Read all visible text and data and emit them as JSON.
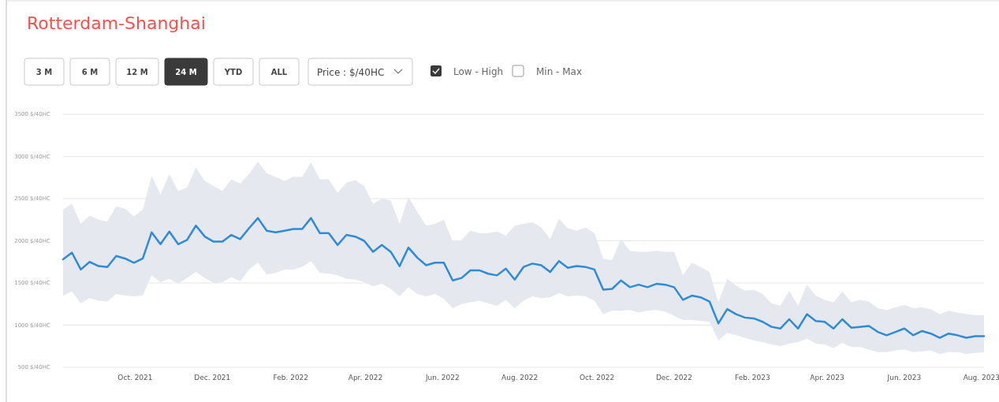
{
  "chart_data": {
    "type": "line",
    "title": "Rotterdam-Shanghai",
    "annotations": [
      "3 M",
      "6 M",
      "12 M",
      "24 M",
      "YTD",
      "ALL",
      "Price : $/40HC",
      "Low - High",
      "Min - Max"
    ],
    "x": [
      "2021-08-05",
      "2021-08-12",
      "2021-08-19",
      "2021-08-26",
      "2021-09-02",
      "2021-09-09",
      "2021-09-16",
      "2021-09-23",
      "2021-09-30",
      "2021-10-07",
      "2021-10-14",
      "2021-10-21",
      "2021-10-28",
      "2021-11-04",
      "2021-11-11",
      "2021-11-18",
      "2021-11-25",
      "2021-12-02",
      "2021-12-09",
      "2021-12-16",
      "2021-12-23",
      "2021-12-30",
      "2022-01-06",
      "2022-01-13",
      "2022-01-20",
      "2022-01-27",
      "2022-02-03",
      "2022-02-10",
      "2022-02-17",
      "2022-02-24",
      "2022-03-03",
      "2022-03-10",
      "2022-03-17",
      "2022-03-24",
      "2022-03-31",
      "2022-04-07",
      "2022-04-14",
      "2022-04-21",
      "2022-04-28",
      "2022-05-05",
      "2022-05-12",
      "2022-05-19",
      "2022-05-26",
      "2022-06-02",
      "2022-06-09",
      "2022-06-16",
      "2022-06-23",
      "2022-06-30",
      "2022-07-07",
      "2022-07-14",
      "2022-07-21",
      "2022-07-28",
      "2022-08-04",
      "2022-08-11",
      "2022-08-18",
      "2022-08-25",
      "2022-09-01",
      "2022-09-08",
      "2022-09-15",
      "2022-09-22",
      "2022-09-29",
      "2022-10-06",
      "2022-10-13",
      "2022-10-20",
      "2022-10-27",
      "2022-11-03",
      "2022-11-10",
      "2022-11-17",
      "2022-11-24",
      "2022-12-01",
      "2022-12-08",
      "2022-12-15",
      "2022-12-22",
      "2022-12-29",
      "2023-01-05",
      "2023-01-12",
      "2023-01-19",
      "2023-01-26",
      "2023-02-02",
      "2023-02-09",
      "2023-02-16",
      "2023-02-23",
      "2023-03-02",
      "2023-03-09",
      "2023-03-16",
      "2023-03-23",
      "2023-03-30",
      "2023-04-06",
      "2023-04-13",
      "2023-04-20",
      "2023-04-27",
      "2023-05-04",
      "2023-05-11",
      "2023-05-18",
      "2023-05-25",
      "2023-06-01",
      "2023-06-08",
      "2023-06-15",
      "2023-06-22",
      "2023-06-29",
      "2023-07-06",
      "2023-07-13",
      "2023-07-20",
      "2023-07-27",
      "2023-08-03"
    ],
    "series": [
      {
        "color": "#2f8ad8",
        "values": [
          1780,
          1860,
          1660,
          1750,
          1700,
          1690,
          1820,
          1790,
          1740,
          1790,
          2100,
          1960,
          2110,
          1960,
          2010,
          2180,
          2050,
          1990,
          1990,
          2070,
          2020,
          2150,
          2270,
          2120,
          2100,
          2120,
          2140,
          2140,
          2270,
          2090,
          2090,
          1950,
          2070,
          2050,
          2000,
          1870,
          1950,
          1870,
          1700,
          1920,
          1800,
          1710,
          1740,
          1740,
          1530,
          1560,
          1650,
          1650,
          1610,
          1590,
          1670,
          1540,
          1690,
          1730,
          1710,
          1630,
          1760,
          1680,
          1700,
          1690,
          1660,
          1420,
          1430,
          1530,
          1450,
          1480,
          1450,
          1490,
          1480,
          1450,
          1300,
          1350,
          1330,
          1280,
          1020,
          1190,
          1130,
          1090,
          1080,
          1040,
          980,
          960,
          1070,
          960,
          1130,
          1050,
          1040,
          960,
          1070,
          970,
          980,
          990,
          920,
          880,
          920,
          960,
          880,
          930,
          900,
          850,
          900,
          880,
          850,
          870,
          870
        ],
        "lower": [
          1350,
          1400,
          1260,
          1320,
          1290,
          1280,
          1370,
          1350,
          1340,
          1350,
          1590,
          1510,
          1550,
          1490,
          1560,
          1630,
          1560,
          1500,
          1510,
          1570,
          1520,
          1660,
          1740,
          1600,
          1620,
          1660,
          1660,
          1690,
          1760,
          1620,
          1610,
          1590,
          1550,
          1540,
          1510,
          1460,
          1490,
          1430,
          1340,
          1450,
          1370,
          1340,
          1370,
          1310,
          1200,
          1250,
          1270,
          1290,
          1260,
          1230,
          1300,
          1200,
          1290,
          1340,
          1320,
          1330,
          1380,
          1340,
          1350,
          1340,
          1290,
          1130,
          1170,
          1170,
          1180,
          1150,
          1170,
          1180,
          1160,
          1110,
          1060,
          1060,
          1050,
          1040,
          820,
          910,
          880,
          850,
          820,
          800,
          770,
          750,
          780,
          800,
          840,
          780,
          770,
          730,
          790,
          740,
          740,
          710,
          680,
          680,
          700,
          710,
          680,
          690,
          700,
          660,
          680,
          680,
          660,
          670,
          680
        ],
        "upper": [
          2370,
          2440,
          2200,
          2300,
          2250,
          2230,
          2410,
          2380,
          2290,
          2370,
          2770,
          2550,
          2790,
          2590,
          2630,
          2870,
          2710,
          2650,
          2590,
          2730,
          2680,
          2790,
          2940,
          2800,
          2760,
          2710,
          2760,
          2760,
          2930,
          2730,
          2730,
          2570,
          2690,
          2720,
          2650,
          2440,
          2500,
          2480,
          2200,
          2520,
          2340,
          2180,
          2200,
          2250,
          1990,
          2010,
          2120,
          2090,
          2090,
          2110,
          2060,
          2180,
          2200,
          2220,
          2160,
          2020,
          2260,
          2150,
          2120,
          2160,
          2090,
          1790,
          1770,
          2020,
          1880,
          1870,
          1870,
          1880,
          1870,
          1870,
          1590,
          1740,
          1690,
          1630,
          1270,
          1550,
          1470,
          1410,
          1420,
          1370,
          1260,
          1230,
          1410,
          1230,
          1480,
          1350,
          1300,
          1270,
          1400,
          1270,
          1300,
          1280,
          1200,
          1180,
          1210,
          1240,
          1200,
          1210,
          1190,
          1130,
          1170,
          1150,
          1130,
          1120,
          1120
        ]
      }
    ],
    "xlim": [
      "2021-08-05",
      "2023-08-03"
    ],
    "xticks": [
      {
        "value": "2021-10-01",
        "label": "Oct. 2021"
      },
      {
        "value": "2021-12-01",
        "label": "Dec. 2021"
      },
      {
        "value": "2022-02-01",
        "label": "Feb. 2022"
      },
      {
        "value": "2022-04-01",
        "label": "Apr. 2022"
      },
      {
        "value": "2022-06-01",
        "label": "Jun. 2022"
      },
      {
        "value": "2022-08-01",
        "label": "Aug. 2022"
      },
      {
        "value": "2022-10-01",
        "label": "Oct. 2022"
      },
      {
        "value": "2022-12-01",
        "label": "Dec. 2022"
      },
      {
        "value": "2023-02-01",
        "label": "Feb. 2023"
      },
      {
        "value": "2023-04-01",
        "label": "Apr. 2023"
      },
      {
        "value": "2023-06-01",
        "label": "Jun. 2023"
      },
      {
        "value": "2023-08-01",
        "label": "Aug. 2023"
      }
    ],
    "ylim": [
      500,
      3500
    ],
    "yticks": [
      500,
      1000,
      1500,
      2000,
      2500,
      3000,
      3500
    ],
    "ylabel": "$/40HC",
    "grid": "y",
    "line_style": "solid",
    "marker": "none"
  }
}
